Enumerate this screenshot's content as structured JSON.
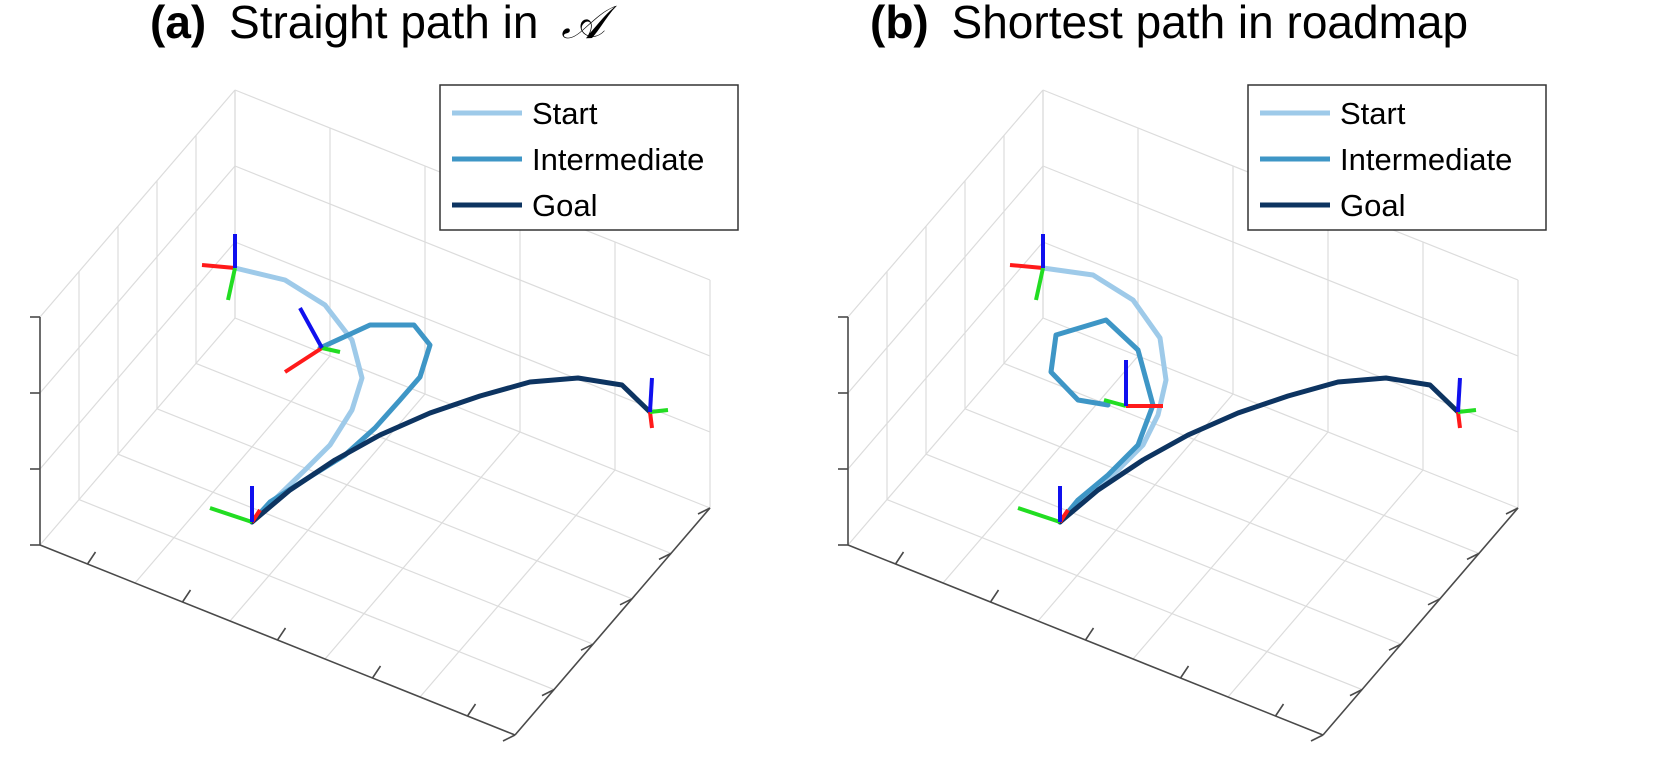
{
  "figure": {
    "panels": [
      {
        "label": "(a)",
        "title_text": "Straight path in",
        "title_symbol": "𝒜",
        "chart_data": {
          "type": "line",
          "title": "(a) Straight path in 𝒜",
          "xlabel": "",
          "ylabel": "",
          "zlabel": "",
          "grid": true,
          "legend_position": "top-right",
          "legend": [
            "Start",
            "Intermediate",
            "Goal"
          ],
          "series": [
            {
              "name": "Start",
              "color": "#9ecae9"
            },
            {
              "name": "Intermediate",
              "color": "#3e96c6"
            },
            {
              "name": "Goal",
              "color": "#0d3461"
            }
          ],
          "frame_colors": {
            "x": "#ff1a1a",
            "y": "#22dd22",
            "z": "#1010ee"
          }
        }
      },
      {
        "label": "(b)",
        "title_text": "Shortest path in roadmap",
        "title_symbol": "",
        "chart_data": {
          "type": "line",
          "title": "(b) Shortest path in roadmap",
          "xlabel": "",
          "ylabel": "",
          "zlabel": "",
          "grid": true,
          "legend_position": "top-right",
          "legend": [
            "Start",
            "Intermediate",
            "Goal"
          ],
          "series": [
            {
              "name": "Start",
              "color": "#9ecae9"
            },
            {
              "name": "Intermediate",
              "color": "#3e96c6"
            },
            {
              "name": "Goal",
              "color": "#0d3461"
            }
          ],
          "frame_colors": {
            "x": "#ff1a1a",
            "y": "#22dd22",
            "z": "#1010ee"
          }
        }
      }
    ]
  }
}
